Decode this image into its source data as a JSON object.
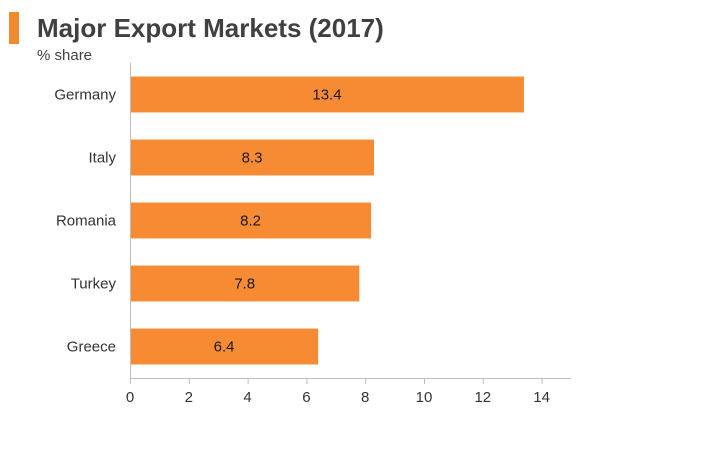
{
  "header": {
    "title": "Major Export Markets (2017)",
    "unit": "% share",
    "accent_color": "#f08a2c"
  },
  "chart_data": {
    "type": "bar",
    "orientation": "horizontal",
    "categories": [
      "Germany",
      "Italy",
      "Romania",
      "Turkey",
      "Greece"
    ],
    "values": [
      13.4,
      8.3,
      8.2,
      7.8,
      6.4
    ],
    "data_labels": [
      "13.4",
      "8.3",
      "8.2",
      "7.8",
      "6.4"
    ],
    "title": "Major Export Markets (2017)",
    "xlabel": "",
    "ylabel": "% share",
    "xlim": [
      0,
      15
    ],
    "x_ticks": [
      0,
      2,
      4,
      6,
      8,
      10,
      12,
      14
    ],
    "grid": false,
    "legend": "none",
    "bar_color": "#f68b33",
    "axis_color": "#bfbfbf"
  }
}
